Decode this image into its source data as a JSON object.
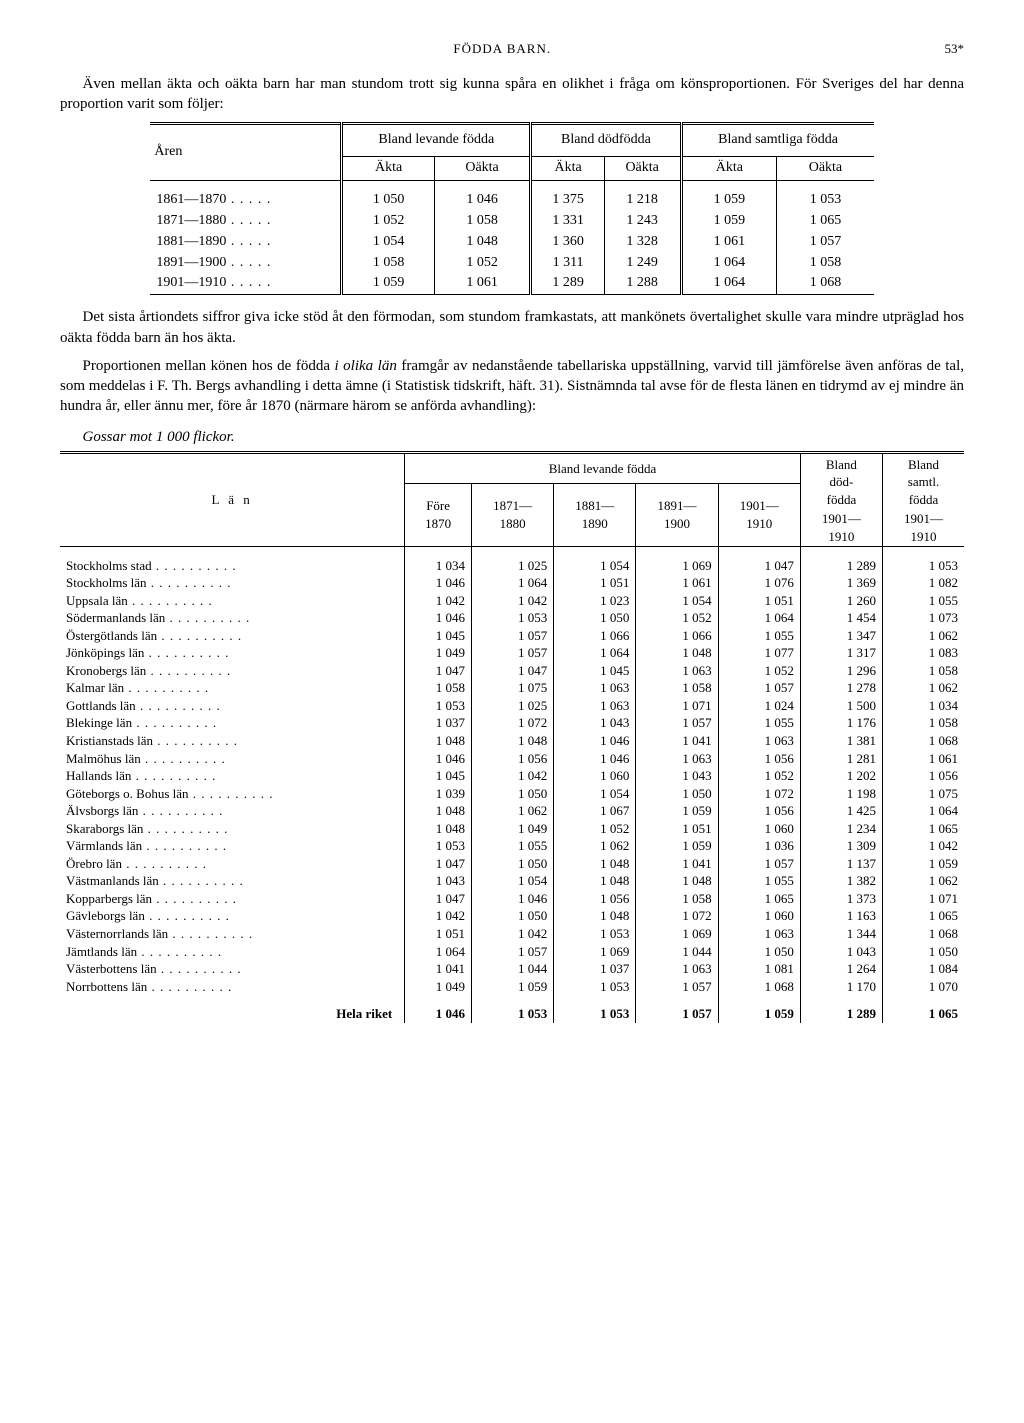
{
  "header": {
    "left": "",
    "center": "FÖDDA BARN.",
    "right": "53*"
  },
  "para1": "Även mellan äkta och oäkta barn har man stundom trott sig kunna spåra en olikhet i fråga om könsproportionen. För Sveriges del har denna proportion varit som följer:",
  "t1": {
    "col_year": "Åren",
    "grp1": "Bland levande födda",
    "grp2": "Bland dödfödda",
    "grp3": "Bland samtliga födda",
    "sub_a": "Äkta",
    "sub_o": "Oäkta",
    "rows": [
      {
        "y": "1861—1870",
        "v": [
          "1 050",
          "1 046",
          "1 375",
          "1 218",
          "1 059",
          "1 053"
        ]
      },
      {
        "y": "1871—1880",
        "v": [
          "1 052",
          "1 058",
          "1 331",
          "1 243",
          "1 059",
          "1 065"
        ]
      },
      {
        "y": "1881—1890",
        "v": [
          "1 054",
          "1 048",
          "1 360",
          "1 328",
          "1 061",
          "1 057"
        ]
      },
      {
        "y": "1891—1900",
        "v": [
          "1 058",
          "1 052",
          "1 311",
          "1 249",
          "1 064",
          "1 058"
        ]
      },
      {
        "y": "1901—1910",
        "v": [
          "1 059",
          "1 061",
          "1 289",
          "1 288",
          "1 064",
          "1 068"
        ]
      }
    ]
  },
  "para2": "Det sista årtiondets siffror giva icke stöd åt den förmodan, som stundom framkastats, att mankönets övertalighet skulle vara mindre utpräglad hos oäkta födda barn än hos äkta.",
  "para3": "Proportionen mellan könen hos de födda i olika län framgår av nedanstående tabellariska uppställning, varvid till jämförelse även anföras de tal, som meddelas i F. Th. Bergs avhandling i detta ämne (i Statistisk tidskrift, häft. 31). Sistnämnda tal avse för de flesta länen en tidrymd av ej mindre än hundra år, eller ännu mer, före år 1870 (närmare härom se anförda avhandling):",
  "caption": "Gossar mot 1 000 flickor.",
  "t2": {
    "col_lan": "L ä n",
    "grp_lev": "Bland levande födda",
    "grp_dod": "Bland död-födda",
    "grp_sam": "Bland samtl. födda",
    "periods": [
      "Före 1870",
      "1871— 1880",
      "1881— 1890",
      "1891— 1900",
      "1901— 1910",
      "1901— 1910",
      "1901— 1910"
    ],
    "rows": [
      {
        "n": "Stockholms stad",
        "v": [
          "1 034",
          "1 025",
          "1 054",
          "1 069",
          "1 047",
          "1 289",
          "1 053"
        ]
      },
      {
        "n": "Stockholms län",
        "v": [
          "1 046",
          "1 064",
          "1 051",
          "1 061",
          "1 076",
          "1 369",
          "1 082"
        ]
      },
      {
        "n": "Uppsala län",
        "v": [
          "1 042",
          "1 042",
          "1 023",
          "1 054",
          "1 051",
          "1 260",
          "1 055"
        ]
      },
      {
        "n": "Södermanlands län",
        "v": [
          "1 046",
          "1 053",
          "1 050",
          "1 052",
          "1 064",
          "1 454",
          "1 073"
        ]
      },
      {
        "n": "Östergötlands län",
        "v": [
          "1 045",
          "1 057",
          "1 066",
          "1 066",
          "1 055",
          "1 347",
          "1 062"
        ]
      },
      {
        "n": "Jönköpings län",
        "v": [
          "1 049",
          "1 057",
          "1 064",
          "1 048",
          "1 077",
          "1 317",
          "1 083"
        ]
      },
      {
        "n": "Kronobergs län",
        "v": [
          "1 047",
          "1 047",
          "1 045",
          "1 063",
          "1 052",
          "1 296",
          "1 058"
        ]
      },
      {
        "n": "Kalmar län",
        "v": [
          "1 058",
          "1 075",
          "1 063",
          "1 058",
          "1 057",
          "1 278",
          "1 062"
        ]
      },
      {
        "n": "Gottlands län",
        "v": [
          "1 053",
          "1 025",
          "1 063",
          "1 071",
          "1 024",
          "1 500",
          "1 034"
        ]
      },
      {
        "n": "Blekinge län",
        "v": [
          "1 037",
          "1 072",
          "1 043",
          "1 057",
          "1 055",
          "1 176",
          "1 058"
        ]
      },
      {
        "n": "Kristianstads län",
        "v": [
          "1 048",
          "1 048",
          "1 046",
          "1 041",
          "1 063",
          "1 381",
          "1 068"
        ]
      },
      {
        "n": "Malmöhus län",
        "v": [
          "1 046",
          "1 056",
          "1 046",
          "1 063",
          "1 056",
          "1 281",
          "1 061"
        ]
      },
      {
        "n": "Hallands län",
        "v": [
          "1 045",
          "1 042",
          "1 060",
          "1 043",
          "1 052",
          "1 202",
          "1 056"
        ]
      },
      {
        "n": "Göteborgs o. Bohus län",
        "v": [
          "1 039",
          "1 050",
          "1 054",
          "1 050",
          "1 072",
          "1 198",
          "1 075"
        ]
      },
      {
        "n": "Älvsborgs län",
        "v": [
          "1 048",
          "1 062",
          "1 067",
          "1 059",
          "1 056",
          "1 425",
          "1 064"
        ]
      },
      {
        "n": "Skaraborgs län",
        "v": [
          "1 048",
          "1 049",
          "1 052",
          "1 051",
          "1 060",
          "1 234",
          "1 065"
        ]
      },
      {
        "n": "Värmlands län",
        "v": [
          "1 053",
          "1 055",
          "1 062",
          "1 059",
          "1 036",
          "1 309",
          "1 042"
        ]
      },
      {
        "n": "Örebro län",
        "v": [
          "1 047",
          "1 050",
          "1 048",
          "1 041",
          "1 057",
          "1 137",
          "1 059"
        ]
      },
      {
        "n": "Västmanlands län",
        "v": [
          "1 043",
          "1 054",
          "1 048",
          "1 048",
          "1 055",
          "1 382",
          "1 062"
        ]
      },
      {
        "n": "Kopparbergs län",
        "v": [
          "1 047",
          "1 046",
          "1 056",
          "1 058",
          "1 065",
          "1 373",
          "1 071"
        ]
      },
      {
        "n": "Gävleborgs län",
        "v": [
          "1 042",
          "1 050",
          "1 048",
          "1 072",
          "1 060",
          "1 163",
          "1 065"
        ]
      },
      {
        "n": "Västernorrlands län",
        "v": [
          "1 051",
          "1 042",
          "1 053",
          "1 069",
          "1 063",
          "1 344",
          "1 068"
        ]
      },
      {
        "n": "Jämtlands län",
        "v": [
          "1 064",
          "1 057",
          "1 069",
          "1 044",
          "1 050",
          "1 043",
          "1 050"
        ]
      },
      {
        "n": "Västerbottens län",
        "v": [
          "1 041",
          "1 044",
          "1 037",
          "1 063",
          "1 081",
          "1 264",
          "1 084"
        ]
      },
      {
        "n": "Norrbottens län",
        "v": [
          "1 049",
          "1 059",
          "1 053",
          "1 057",
          "1 068",
          "1 170",
          "1 070"
        ]
      }
    ],
    "total": {
      "n": "Hela riket",
      "v": [
        "1 046",
        "1 053",
        "1 053",
        "1 057",
        "1 059",
        "1 289",
        "1 065"
      ]
    }
  }
}
